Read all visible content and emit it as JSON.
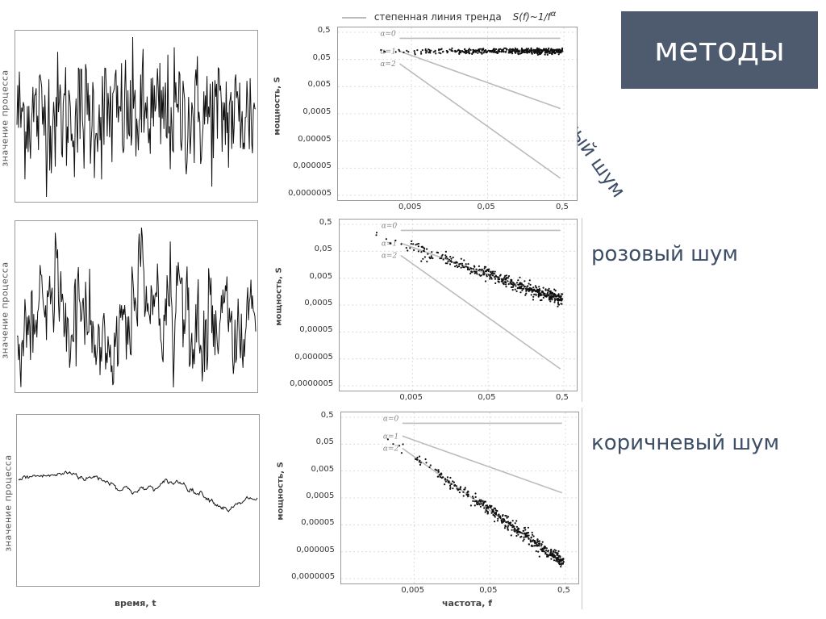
{
  "title": "методы",
  "legend": {
    "label": "степенная линия тренда",
    "formula": "S(f)~1/f",
    "formula_exp": "α"
  },
  "left_ylabel": "значение процесса",
  "left_xlabel": "время, t",
  "mid_ylabel": "мощность, S",
  "mid_xlabel": "частота, f",
  "noise_labels": {
    "white": "белый шум",
    "pink": "розовый шум",
    "brown": "коричневый шум"
  },
  "alpha_labels": [
    "α=0",
    "α=1",
    "α=2"
  ],
  "chart_data": [
    {
      "type": "line",
      "title": "",
      "ylabel": "значение процесса",
      "xlabel": "",
      "series": [
        {
          "kind": "white_noise"
        }
      ]
    },
    {
      "type": "scatter",
      "xscale": "log",
      "yscale": "log",
      "xticks": [
        "0,005",
        "0,05",
        "0,5"
      ],
      "yticks": [
        "0,5",
        "0,05",
        "0,005",
        "0,0005",
        "0,00005",
        "0,000005",
        "0,0000005"
      ],
      "ylabel": "мощность, S",
      "xlim": [
        0.0006,
        0.5
      ],
      "ylim": [
        5e-07,
        0.5
      ],
      "trend_lines": [
        {
          "name": "α=0",
          "alpha": 0
        },
        {
          "name": "α=1",
          "alpha": 1
        },
        {
          "name": "α=2",
          "alpha": 2
        }
      ],
      "spectrum_alpha": 0
    },
    {
      "type": "line",
      "ylabel": "значение процесса",
      "series": [
        {
          "kind": "pink_noise"
        }
      ]
    },
    {
      "type": "scatter",
      "xscale": "log",
      "yscale": "log",
      "xticks": [
        "0,005",
        "0,05",
        "0,5"
      ],
      "yticks": [
        "0,5",
        "0,05",
        "0,005",
        "0,0005",
        "0,00005",
        "0,000005",
        "0,0000005"
      ],
      "ylabel": "мощность, S",
      "xlim": [
        0.0006,
        0.5
      ],
      "ylim": [
        5e-07,
        0.5
      ],
      "trend_lines": [
        {
          "name": "α=0",
          "alpha": 0
        },
        {
          "name": "α=1",
          "alpha": 1
        },
        {
          "name": "α=2",
          "alpha": 2
        }
      ],
      "spectrum_alpha": 1
    },
    {
      "type": "line",
      "ylabel": "значение процесса",
      "xlabel": "время, t",
      "series": [
        {
          "kind": "brown_noise"
        }
      ]
    },
    {
      "type": "scatter",
      "xscale": "log",
      "yscale": "log",
      "xticks": [
        "0,005",
        "0,05",
        "0,5"
      ],
      "yticks": [
        "0,5",
        "0,05",
        "0,005",
        "0,0005",
        "0,00005",
        "0,000005",
        "0,0000005"
      ],
      "ylabel": "мощность, S",
      "xlabel": "частота, f",
      "xlim": [
        0.0006,
        0.5
      ],
      "ylim": [
        5e-07,
        0.5
      ],
      "trend_lines": [
        {
          "name": "α=0",
          "alpha": 0
        },
        {
          "name": "α=1",
          "alpha": 1
        },
        {
          "name": "α=2",
          "alpha": 2
        }
      ],
      "spectrum_alpha": 2
    }
  ],
  "colors": {
    "title_bg": "#4e5b6f",
    "label_text": "#3d4e66",
    "trend": "#bbbbbb"
  }
}
